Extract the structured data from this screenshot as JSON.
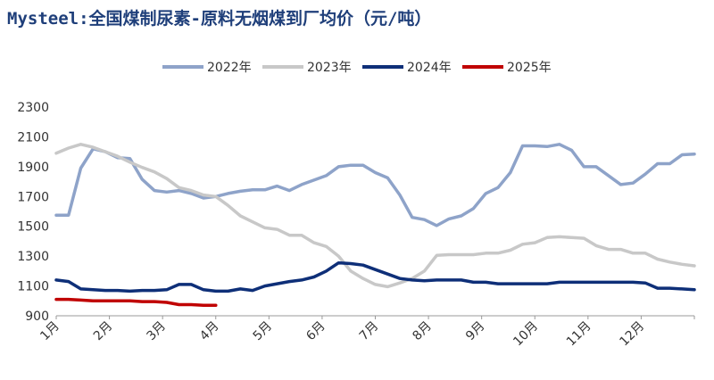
{
  "title": "Mysteel:全国煤制尿素-原料无烟煤到厂均价（元/吨）",
  "chart_data": {
    "type": "line",
    "title": "Mysteel:全国煤制尿素-原料无烟煤到厂均价（元/吨）",
    "xlabel": "",
    "ylabel": "",
    "ylim": [
      900,
      2300
    ],
    "yticks": [
      900,
      1100,
      1300,
      1500,
      1700,
      1900,
      2100,
      2300
    ],
    "x_tick_labels": [
      "1月",
      "2月",
      "3月",
      "4月",
      "5月",
      "6月",
      "7月",
      "8月",
      "9月",
      "10月",
      "11月",
      "12月"
    ],
    "x_unit": "week (1–53)",
    "legend_position": "top-center",
    "grid": false,
    "series": [
      {
        "name": "2022年",
        "color": "#8ea3c9",
        "x": [
          1,
          2,
          3,
          4,
          5,
          6,
          7,
          8,
          9,
          10,
          11,
          12,
          13,
          14,
          15,
          16,
          17,
          18,
          19,
          20,
          21,
          22,
          23,
          24,
          25,
          26,
          27,
          28,
          29,
          30,
          31,
          32,
          33,
          34,
          35,
          36,
          37,
          38,
          39,
          40,
          41,
          42,
          43,
          44,
          45,
          46,
          47,
          48,
          49,
          50,
          51,
          52,
          53
        ],
        "values": [
          1575,
          1575,
          1890,
          2020,
          2000,
          1960,
          1955,
          1815,
          1740,
          1730,
          1740,
          1720,
          1690,
          1700,
          1720,
          1735,
          1745,
          1745,
          1770,
          1740,
          1780,
          1810,
          1840,
          1900,
          1910,
          1910,
          1860,
          1825,
          1710,
          1560,
          1545,
          1505,
          1550,
          1570,
          1620,
          1720,
          1760,
          1860,
          2040,
          2040,
          2035,
          2050,
          2010,
          1900,
          1900,
          1840,
          1780,
          1790,
          1850,
          1920,
          1920,
          1980,
          1985
        ]
      },
      {
        "name": "2023年",
        "color": "#c8c8c8",
        "x": [
          1,
          2,
          3,
          4,
          5,
          6,
          7,
          8,
          9,
          10,
          11,
          12,
          13,
          14,
          15,
          16,
          17,
          18,
          19,
          20,
          21,
          22,
          23,
          24,
          25,
          26,
          27,
          28,
          29,
          30,
          31,
          32,
          33,
          34,
          35,
          36,
          37,
          38,
          39,
          40,
          41,
          42,
          43,
          44,
          45,
          46,
          47,
          48,
          49,
          50,
          51,
          52,
          53
        ],
        "values": [
          1990,
          2025,
          2050,
          2030,
          2000,
          1970,
          1930,
          1895,
          1865,
          1820,
          1760,
          1740,
          1710,
          1700,
          1640,
          1570,
          1530,
          1490,
          1480,
          1440,
          1440,
          1390,
          1365,
          1300,
          1200,
          1150,
          1110,
          1095,
          1120,
          1150,
          1200,
          1305,
          1310,
          1310,
          1310,
          1320,
          1320,
          1340,
          1380,
          1390,
          1425,
          1430,
          1425,
          1420,
          1370,
          1345,
          1345,
          1320,
          1320,
          1280,
          1260,
          1245,
          1235
        ]
      },
      {
        "name": "2024年",
        "color": "#0e2f78",
        "x": [
          1,
          2,
          3,
          4,
          5,
          6,
          7,
          8,
          9,
          10,
          11,
          12,
          13,
          14,
          15,
          16,
          17,
          18,
          19,
          20,
          21,
          22,
          23,
          24,
          25,
          26,
          27,
          28,
          29,
          30,
          31,
          32,
          33,
          34,
          35,
          36,
          37,
          38,
          39,
          40,
          41,
          42,
          43,
          44,
          45,
          46,
          47,
          48,
          49,
          50,
          51,
          52,
          53
        ],
        "values": [
          1140,
          1130,
          1080,
          1075,
          1070,
          1070,
          1065,
          1070,
          1070,
          1075,
          1110,
          1110,
          1075,
          1065,
          1065,
          1080,
          1070,
          1100,
          1115,
          1130,
          1140,
          1160,
          1200,
          1255,
          1250,
          1240,
          1210,
          1180,
          1150,
          1140,
          1135,
          1140,
          1140,
          1140,
          1125,
          1125,
          1115,
          1115,
          1115,
          1115,
          1115,
          1125,
          1125,
          1125,
          1125,
          1125,
          1125,
          1125,
          1120,
          1085,
          1085,
          1080,
          1075
        ]
      },
      {
        "name": "2025年",
        "color": "#c00000",
        "x": [
          1,
          2,
          3,
          4,
          5,
          6,
          7,
          8,
          9,
          10,
          11,
          12,
          13,
          14
        ],
        "values": [
          1010,
          1010,
          1005,
          1000,
          1000,
          1000,
          1000,
          995,
          995,
          990,
          975,
          975,
          970,
          970
        ]
      }
    ]
  }
}
